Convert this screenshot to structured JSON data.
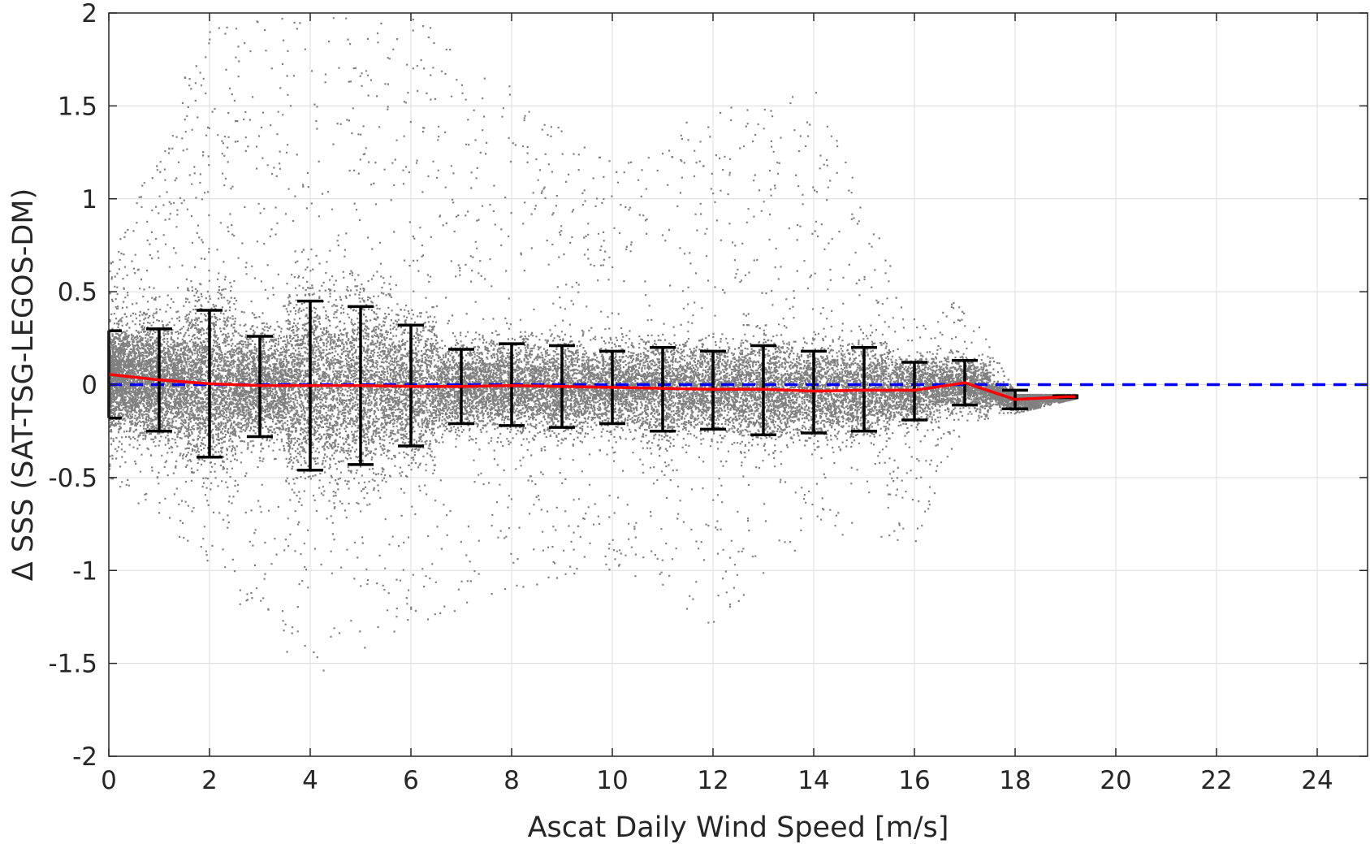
{
  "chart_data": {
    "type": "scatter",
    "title": "",
    "xlabel": "Ascat Daily Wind Speed [m/s]",
    "ylabel": "Δ SSS (SAT-TSG-LEGOS-DM)",
    "xlim": [
      0,
      25
    ],
    "ylim": [
      -2,
      2
    ],
    "xticks": [
      0,
      2,
      4,
      6,
      8,
      10,
      12,
      14,
      16,
      18,
      20,
      22,
      24
    ],
    "yticks": [
      -2,
      -1.5,
      -1,
      -0.5,
      0,
      0.5,
      1,
      1.5,
      2
    ],
    "xtick_labels": [
      "0",
      "2",
      "4",
      "6",
      "8",
      "10",
      "12",
      "14",
      "16",
      "18",
      "20",
      "22",
      "24"
    ],
    "ytick_labels": [
      "-2",
      "-1.5",
      "-1",
      "-0.5",
      "0",
      "0.5",
      "1",
      "1.5",
      "2"
    ],
    "grid": true,
    "reference_line": {
      "y": 0,
      "style": "dashed",
      "color": "#0000ff"
    },
    "scatter_cloud": {
      "color": "#808080",
      "x_range": [
        0,
        19.2
      ],
      "note_values": "dense cloud of individual collocation points; spread shrinks with wind speed",
      "spread_by_wind": [
        {
          "x": 0,
          "lo": -0.5,
          "hi": 0.65
        },
        {
          "x": 2,
          "lo": -1.0,
          "hi": 2.0
        },
        {
          "x": 4,
          "lo": -1.6,
          "hi": 2.0
        },
        {
          "x": 6,
          "lo": -1.3,
          "hi": 2.0
        },
        {
          "x": 8,
          "lo": -1.1,
          "hi": 1.6
        },
        {
          "x": 10,
          "lo": -1.0,
          "hi": 1.2
        },
        {
          "x": 12,
          "lo": -1.3,
          "hi": 1.5
        },
        {
          "x": 14,
          "lo": -0.8,
          "hi": 1.6
        },
        {
          "x": 16,
          "lo": -0.85,
          "hi": 0.35
        },
        {
          "x": 17,
          "lo": -0.2,
          "hi": 0.5
        },
        {
          "x": 18,
          "lo": -0.15,
          "hi": -0.05
        },
        {
          "x": 19.2,
          "lo": -0.07,
          "hi": -0.05
        }
      ]
    },
    "series": [
      {
        "type": "line",
        "color": "#ff0000",
        "x": [
          0,
          1,
          2,
          3,
          4,
          5,
          6,
          7,
          8,
          9,
          10,
          11,
          12,
          13,
          14,
          15,
          16,
          17,
          18,
          19,
          19.2
        ],
        "y": [
          0.055,
          0.025,
          0.005,
          -0.005,
          -0.005,
          -0.005,
          -0.01,
          -0.01,
          -0.005,
          -0.01,
          -0.015,
          -0.02,
          -0.025,
          -0.025,
          -0.035,
          -0.03,
          -0.03,
          0.01,
          -0.08,
          -0.065,
          -0.065
        ]
      },
      {
        "type": "errorbar",
        "color": "#000000",
        "x": [
          0,
          1,
          2,
          3,
          4,
          5,
          6,
          7,
          8,
          9,
          10,
          11,
          12,
          13,
          14,
          15,
          16,
          17,
          18,
          19
        ],
        "lower": [
          -0.18,
          -0.25,
          -0.39,
          -0.28,
          -0.46,
          -0.43,
          -0.33,
          -0.21,
          -0.22,
          -0.23,
          -0.21,
          -0.25,
          -0.24,
          -0.27,
          -0.26,
          -0.25,
          -0.19,
          -0.11,
          -0.13,
          -0.07
        ],
        "upper": [
          0.29,
          0.3,
          0.4,
          0.26,
          0.45,
          0.42,
          0.32,
          0.19,
          0.22,
          0.21,
          0.18,
          0.2,
          0.18,
          0.21,
          0.18,
          0.2,
          0.12,
          0.13,
          -0.03,
          -0.06
        ]
      }
    ]
  }
}
